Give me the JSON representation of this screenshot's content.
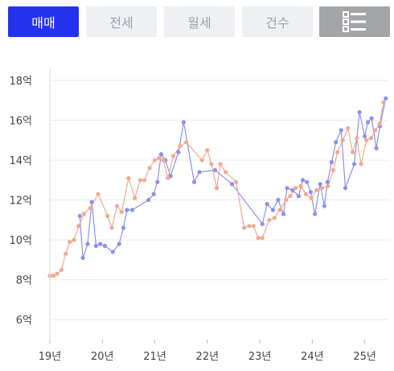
{
  "tabs": [
    {
      "label": "매매",
      "active": true
    },
    {
      "label": "전세",
      "active": false
    },
    {
      "label": "월세",
      "active": false
    },
    {
      "label": "건수",
      "active": false
    }
  ],
  "menu_button": {
    "icon": "list-view-icon"
  },
  "colors": {
    "accent": "#2432ee",
    "series_blue": "#8a91ef",
    "series_orange": "#f3a98f",
    "grid": "#ececec",
    "tick_text": "#444444"
  },
  "chart_data": {
    "type": "line",
    "title": "",
    "xlabel": "",
    "ylabel": "",
    "ylim": [
      5,
      18.6
    ],
    "xlim": [
      2019.0,
      2025.45
    ],
    "yticks": [
      6,
      8,
      10,
      12,
      14,
      16,
      18
    ],
    "ytick_labels": [
      "6억",
      "8억",
      "10억",
      "12억",
      "14억",
      "16억",
      "18억"
    ],
    "xticks": [
      2019,
      2020,
      2021,
      2022,
      2023,
      2024,
      2025
    ],
    "xtick_labels": [
      "19년",
      "20년",
      "21년",
      "22년",
      "23년",
      "24년",
      "25년"
    ],
    "grid": true,
    "series": [
      {
        "color": "#8a91ef",
        "points": [
          [
            2019.57,
            11.2
          ],
          [
            2019.63,
            9.1
          ],
          [
            2019.72,
            9.8
          ],
          [
            2019.8,
            11.9
          ],
          [
            2019.88,
            9.7
          ],
          [
            2019.96,
            9.8
          ],
          [
            2020.05,
            9.7
          ],
          [
            2020.2,
            9.4
          ],
          [
            2020.32,
            9.8
          ],
          [
            2020.4,
            10.6
          ],
          [
            2020.47,
            11.5
          ],
          [
            2020.57,
            11.5
          ],
          [
            2020.88,
            12.0
          ],
          [
            2020.98,
            12.3
          ],
          [
            2021.05,
            12.9
          ],
          [
            2021.12,
            14.3
          ],
          [
            2021.2,
            14.0
          ],
          [
            2021.3,
            13.2
          ],
          [
            2021.45,
            14.4
          ],
          [
            2021.55,
            15.9
          ],
          [
            2021.75,
            12.9
          ],
          [
            2021.85,
            13.4
          ],
          [
            2022.15,
            13.5
          ],
          [
            2022.47,
            12.8
          ],
          [
            2023.05,
            10.8
          ],
          [
            2023.14,
            11.8
          ],
          [
            2023.25,
            11.5
          ],
          [
            2023.35,
            12.0
          ],
          [
            2023.45,
            11.3
          ],
          [
            2023.52,
            12.6
          ],
          [
            2023.62,
            12.5
          ],
          [
            2023.74,
            12.2
          ],
          [
            2023.82,
            13.0
          ],
          [
            2023.9,
            12.9
          ],
          [
            2023.97,
            12.4
          ],
          [
            2024.05,
            11.3
          ],
          [
            2024.15,
            12.8
          ],
          [
            2024.23,
            11.7
          ],
          [
            2024.29,
            12.9
          ],
          [
            2024.37,
            13.9
          ],
          [
            2024.45,
            14.9
          ],
          [
            2024.55,
            15.5
          ],
          [
            2024.63,
            12.6
          ],
          [
            2024.8,
            13.8
          ],
          [
            2024.9,
            16.4
          ],
          [
            2025.0,
            15.2
          ],
          [
            2025.06,
            15.9
          ],
          [
            2025.13,
            16.1
          ],
          [
            2025.22,
            14.6
          ],
          [
            2025.29,
            15.7
          ],
          [
            2025.4,
            17.1
          ]
        ]
      },
      {
        "color": "#f3a98f",
        "points": [
          [
            2019.0,
            8.2
          ],
          [
            2019.07,
            8.2
          ],
          [
            2019.14,
            8.3
          ],
          [
            2019.22,
            8.5
          ],
          [
            2019.3,
            9.3
          ],
          [
            2019.38,
            9.9
          ],
          [
            2019.46,
            10.0
          ],
          [
            2019.55,
            10.7
          ],
          [
            2019.65,
            11.3
          ],
          [
            2019.77,
            11.6
          ],
          [
            2019.92,
            12.3
          ],
          [
            2020.1,
            11.2
          ],
          [
            2020.18,
            10.6
          ],
          [
            2020.28,
            11.7
          ],
          [
            2020.37,
            11.4
          ],
          [
            2020.5,
            13.1
          ],
          [
            2020.62,
            12.1
          ],
          [
            2020.72,
            13.0
          ],
          [
            2020.8,
            13.0
          ],
          [
            2020.9,
            13.6
          ],
          [
            2021.0,
            14.0
          ],
          [
            2021.08,
            14.1
          ],
          [
            2021.16,
            14.0
          ],
          [
            2021.25,
            13.1
          ],
          [
            2021.35,
            14.2
          ],
          [
            2021.48,
            14.7
          ],
          [
            2021.6,
            14.9
          ],
          [
            2021.9,
            14.0
          ],
          [
            2022.0,
            14.5
          ],
          [
            2022.08,
            13.8
          ],
          [
            2022.18,
            12.6
          ],
          [
            2022.25,
            13.8
          ],
          [
            2022.35,
            13.4
          ],
          [
            2022.55,
            12.9
          ],
          [
            2022.7,
            10.6
          ],
          [
            2022.8,
            10.7
          ],
          [
            2022.88,
            10.7
          ],
          [
            2022.97,
            10.1
          ],
          [
            2023.05,
            10.1
          ],
          [
            2023.18,
            11.0
          ],
          [
            2023.28,
            11.1
          ],
          [
            2023.38,
            11.5
          ],
          [
            2023.5,
            12.0
          ],
          [
            2023.58,
            12.2
          ],
          [
            2023.68,
            12.6
          ],
          [
            2023.78,
            12.7
          ],
          [
            2023.88,
            12.3
          ],
          [
            2023.98,
            12.1
          ],
          [
            2024.08,
            12.5
          ],
          [
            2024.18,
            12.6
          ],
          [
            2024.3,
            12.7
          ],
          [
            2024.4,
            13.5
          ],
          [
            2024.48,
            14.4
          ],
          [
            2024.58,
            15.0
          ],
          [
            2024.68,
            15.6
          ],
          [
            2024.77,
            14.4
          ],
          [
            2024.85,
            15.1
          ],
          [
            2024.93,
            13.8
          ],
          [
            2025.03,
            15.0
          ],
          [
            2025.12,
            15.1
          ],
          [
            2025.2,
            15.5
          ],
          [
            2025.28,
            15.8
          ],
          [
            2025.36,
            16.9
          ]
        ]
      }
    ]
  }
}
